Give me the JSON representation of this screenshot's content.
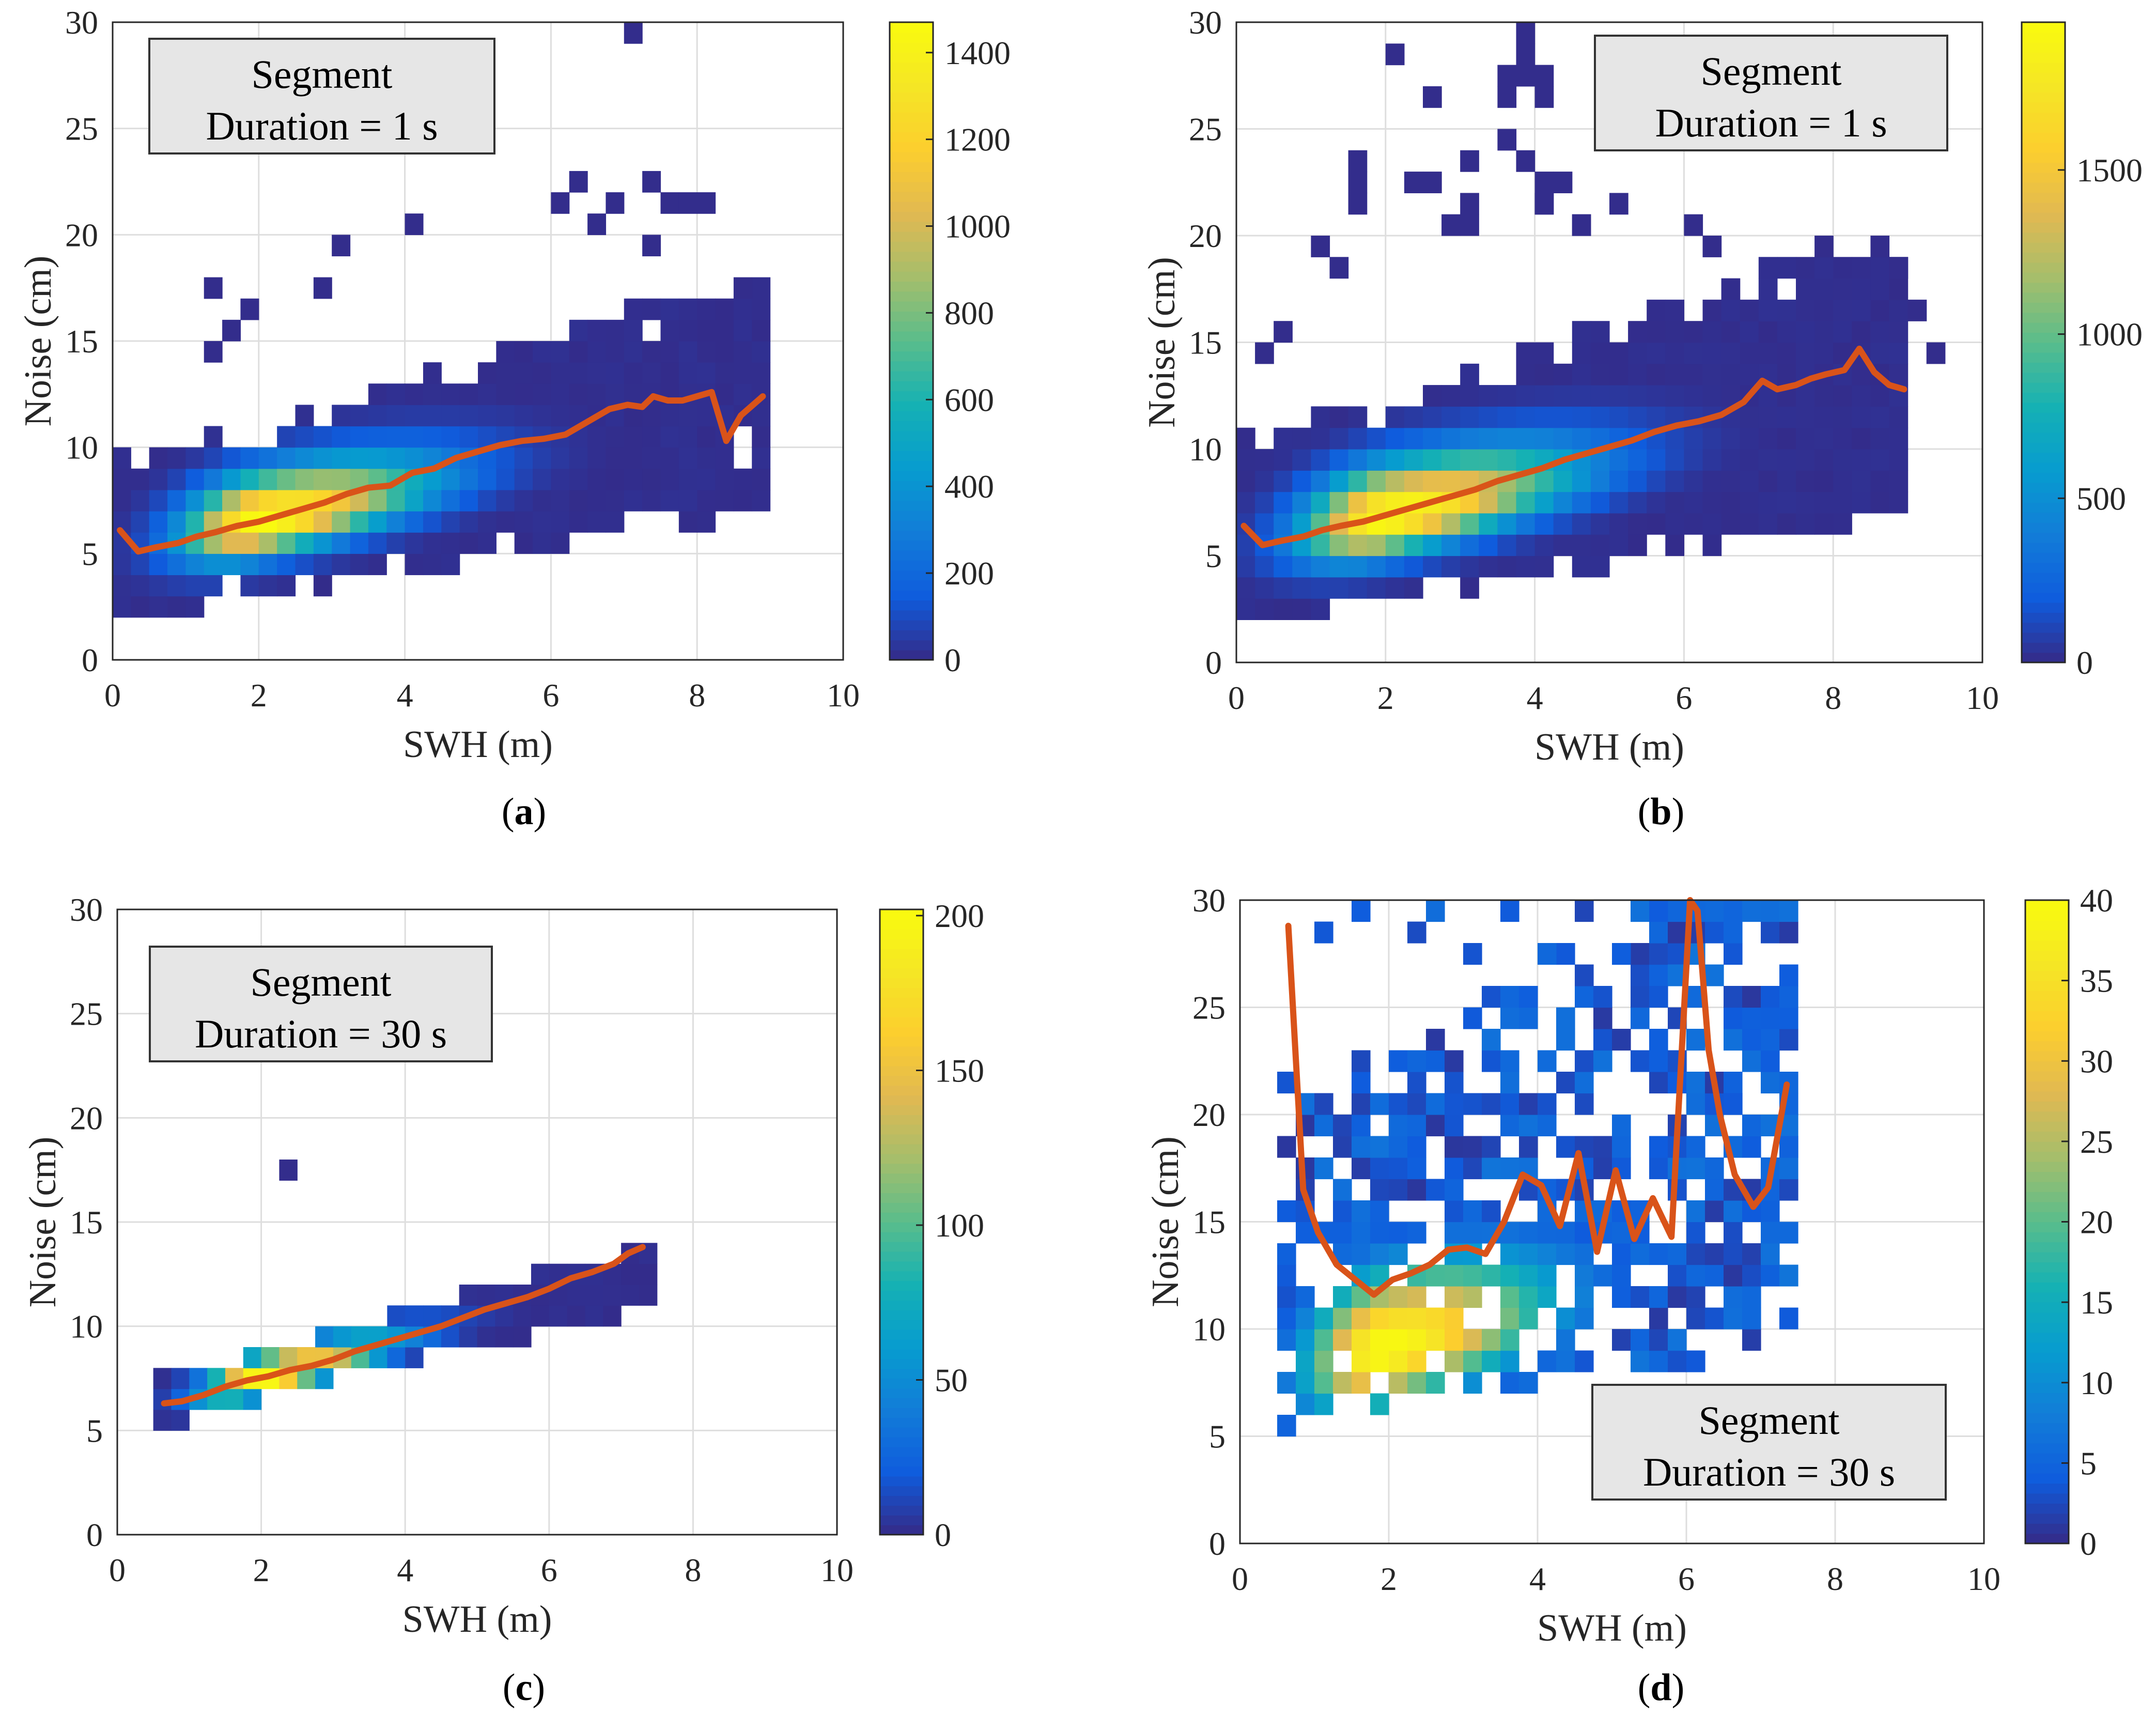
{
  "chart_data": [
    {
      "type": "heatmap",
      "panel_label": "a",
      "title": "",
      "annotation": {
        "line1": "Segment",
        "line2": "Duration = 1 s",
        "placement": "top-left"
      },
      "xlabel": "SWH (m)",
      "ylabel": "Noise (cm)",
      "xlim": [
        0,
        10
      ],
      "ylim": [
        0,
        30
      ],
      "xticks": [
        0,
        2,
        4,
        6,
        8,
        10
      ],
      "yticks": [
        0,
        5,
        10,
        15,
        20,
        25,
        30
      ],
      "grid": true,
      "bin_size": {
        "x": 0.25,
        "y": 1
      },
      "colorbar": {
        "min": 0,
        "max": 1470,
        "ticks": [
          0,
          200,
          400,
          600,
          800,
          1000,
          1200,
          1400
        ],
        "colormap": "parula"
      },
      "density": {
        "center": [
          2.0,
          6.5
        ],
        "peak": 1470,
        "sigma_along": 0.7,
        "sigma_across": 1.1,
        "extent_x": [
          0,
          9
        ],
        "slope_y": 0.75,
        "spread_low": [
          3.5,
          0.6
        ],
        "spread_high": [
          4.5,
          0.9
        ],
        "outliers": [
          [
            7.0,
            29.5
          ],
          [
            6.4,
            22.5
          ],
          [
            6.8,
            21.5
          ],
          [
            7.25,
            22.5
          ],
          [
            7.6,
            21.5
          ],
          [
            7.9,
            21.5
          ],
          [
            8.1,
            21.5
          ],
          [
            3.05,
            19.5
          ],
          [
            4.1,
            20.5
          ],
          [
            1.4,
            17.5
          ],
          [
            2.85,
            17.5
          ],
          [
            1.8,
            16.5
          ],
          [
            8.6,
            17.5
          ],
          [
            7.3,
            15.5
          ],
          [
            1.25,
            14.5
          ],
          [
            1.55,
            15.5
          ],
          [
            6.65,
            20.5
          ],
          [
            7.4,
            19.5
          ],
          [
            6.0,
            21.5
          ]
        ],
        "holes": [
          [
            7.3,
            15.5
          ],
          [
            8.6,
            9.5
          ],
          [
            8.6,
            10.5
          ],
          [
            1.5,
            3.5
          ]
        ]
      },
      "line": {
        "name": "Mean noise",
        "color": "#d95319",
        "x": [
          0.1,
          0.35,
          0.6,
          0.9,
          1.15,
          1.4,
          1.7,
          2.0,
          2.3,
          2.6,
          2.9,
          3.2,
          3.5,
          3.8,
          4.1,
          4.4,
          4.7,
          5.0,
          5.3,
          5.6,
          5.9,
          6.2,
          6.5,
          6.8,
          7.05,
          7.25,
          7.4,
          7.6,
          7.8,
          8.0,
          8.2,
          8.4,
          8.6,
          8.9
        ],
        "y": [
          6.1,
          5.1,
          5.3,
          5.5,
          5.8,
          6.0,
          6.3,
          6.5,
          6.8,
          7.1,
          7.4,
          7.8,
          8.1,
          8.2,
          8.8,
          9.0,
          9.5,
          9.8,
          10.1,
          10.3,
          10.4,
          10.6,
          11.2,
          11.8,
          12.0,
          11.9,
          12.4,
          12.2,
          12.2,
          12.4,
          12.6,
          10.3,
          11.5,
          12.4
        ]
      },
      "caption": "(a)"
    },
    {
      "type": "heatmap",
      "panel_label": "b",
      "title": "",
      "annotation": {
        "line1": "Segment",
        "line2": "Duration = 1 s",
        "placement": "top-right"
      },
      "xlabel": "SWH (m)",
      "ylabel": "Noise (cm)",
      "xlim": [
        0,
        10
      ],
      "ylim": [
        0,
        30
      ],
      "xticks": [
        0,
        2,
        4,
        6,
        8,
        10
      ],
      "yticks": [
        0,
        5,
        10,
        15,
        20,
        25,
        30
      ],
      "grid": true,
      "bin_size": {
        "x": 0.25,
        "y": 1
      },
      "colorbar": {
        "min": 0,
        "max": 1950,
        "ticks": [
          0,
          500,
          1000,
          1500
        ],
        "colormap": "parula"
      },
      "density": {
        "center": [
          2.0,
          6.8
        ],
        "peak": 1950,
        "sigma_along": 0.75,
        "sigma_across": 1.2,
        "extent_x": [
          0,
          9
        ],
        "slope_y": 0.78,
        "spread_low": [
          4.0,
          0.7
        ],
        "spread_high": [
          5.5,
          1.1
        ],
        "outliers": [
          [
            3.9,
            29.5
          ],
          [
            3.8,
            28.5
          ],
          [
            3.5,
            27.5
          ],
          [
            3.75,
            27.5
          ],
          [
            4.0,
            27.5
          ],
          [
            2.0,
            28.5
          ],
          [
            2.7,
            26.5
          ],
          [
            3.6,
            26.5
          ],
          [
            4.1,
            26.5
          ],
          [
            3.7,
            24.5
          ],
          [
            3.2,
            23.5
          ],
          [
            3.85,
            23.5
          ],
          [
            4.1,
            22.5
          ],
          [
            1.7,
            23.5
          ],
          [
            1.55,
            22.5
          ],
          [
            1.5,
            21.5
          ],
          [
            2.3,
            22.5
          ],
          [
            2.55,
            22.5
          ],
          [
            3.05,
            21.5
          ],
          [
            4.35,
            22.5
          ],
          [
            2.75,
            20.5
          ],
          [
            3.0,
            20.5
          ],
          [
            4.0,
            21.5
          ],
          [
            4.2,
            21.5
          ],
          [
            5.0,
            21.5
          ],
          [
            4.5,
            20.5
          ],
          [
            4.7,
            20.5
          ],
          [
            6.0,
            20.5
          ],
          [
            6.4,
            19.5
          ],
          [
            1.0,
            19.5
          ],
          [
            1.3,
            18.5
          ],
          [
            7.8,
            19.5
          ],
          [
            8.5,
            19.5
          ],
          [
            8.9,
            18.5
          ],
          [
            0.7,
            15.5
          ],
          [
            0.45,
            14.5
          ],
          [
            9.1,
            16.5
          ],
          [
            9.3,
            14.5
          ]
        ],
        "holes": [
          [
            7.3,
            17.5
          ],
          [
            6.0,
            18.5
          ],
          [
            2.0,
            16.5
          ],
          [
            2.5,
            15.5
          ],
          [
            4.8,
            17.5
          ]
        ]
      },
      "line": {
        "name": "Mean noise",
        "color": "#d95319",
        "x": [
          0.1,
          0.35,
          0.6,
          0.9,
          1.15,
          1.4,
          1.7,
          2.0,
          2.3,
          2.6,
          2.9,
          3.2,
          3.5,
          3.8,
          4.1,
          4.4,
          4.7,
          5.0,
          5.3,
          5.6,
          5.9,
          6.2,
          6.5,
          6.8,
          7.05,
          7.25,
          7.5,
          7.7,
          7.9,
          8.15,
          8.35,
          8.55,
          8.75,
          8.95
        ],
        "y": [
          6.4,
          5.5,
          5.7,
          5.9,
          6.2,
          6.4,
          6.6,
          6.9,
          7.2,
          7.5,
          7.8,
          8.1,
          8.5,
          8.8,
          9.1,
          9.5,
          9.8,
          10.1,
          10.4,
          10.8,
          11.1,
          11.3,
          11.6,
          12.2,
          13.2,
          12.8,
          13.0,
          13.3,
          13.5,
          13.7,
          14.7,
          13.6,
          13.0,
          12.8
        ]
      },
      "caption": "(b)"
    },
    {
      "type": "heatmap",
      "panel_label": "c",
      "title": "",
      "annotation": {
        "line1": "Segment",
        "line2": "Duration = 30 s",
        "placement": "top-left"
      },
      "xlabel": "SWH (m)",
      "ylabel": "Noise (cm)",
      "xlim": [
        0,
        10
      ],
      "ylim": [
        0,
        30
      ],
      "xticks": [
        0,
        2,
        4,
        6,
        8,
        10
      ],
      "yticks": [
        0,
        5,
        10,
        15,
        20,
        25,
        30
      ],
      "grid": true,
      "bin_size": {
        "x": 0.25,
        "y": 1
      },
      "colorbar": {
        "min": 0,
        "max": 202,
        "ticks": [
          0,
          50,
          100,
          150,
          200
        ],
        "colormap": "parula"
      },
      "density": {
        "center": [
          2.0,
          7.5
        ],
        "peak": 202,
        "sigma_along": 0.55,
        "sigma_across": 0.55,
        "extent_x": [
          0.5,
          7.5
        ],
        "slope_y": 0.9,
        "spread_low": [
          1.0,
          0.3
        ],
        "spread_high": [
          1.3,
          0.3
        ],
        "outliers": [
          [
            2.35,
            17.5
          ]
        ],
        "holes": []
      },
      "line": {
        "name": "Mean noise",
        "color": "#d95319",
        "x": [
          0.65,
          0.9,
          1.2,
          1.5,
          1.8,
          2.1,
          2.4,
          2.7,
          3.0,
          3.3,
          3.6,
          3.9,
          4.2,
          4.5,
          4.8,
          5.1,
          5.4,
          5.7,
          6.0,
          6.3,
          6.6,
          6.9,
          7.1,
          7.3
        ],
        "y": [
          6.3,
          6.4,
          6.7,
          7.1,
          7.4,
          7.6,
          7.9,
          8.1,
          8.4,
          8.8,
          9.1,
          9.4,
          9.7,
          10.0,
          10.4,
          10.8,
          11.1,
          11.4,
          11.8,
          12.3,
          12.6,
          13.0,
          13.5,
          13.8
        ]
      },
      "caption": "(c)"
    },
    {
      "type": "heatmap",
      "panel_label": "d",
      "title": "",
      "annotation": {
        "line1": "Segment",
        "line2": "Duration = 30 s",
        "placement": "bottom-right"
      },
      "xlabel": "SWH (m)",
      "ylabel": "Noise (cm)",
      "xlim": [
        0,
        10
      ],
      "ylim": [
        0,
        30
      ],
      "xticks": [
        0,
        2,
        4,
        6,
        8,
        10
      ],
      "yticks": [
        0,
        5,
        10,
        15,
        20,
        25,
        30
      ],
      "grid": true,
      "bin_size": {
        "x": 0.25,
        "y": 1
      },
      "colorbar": {
        "min": 0,
        "max": 40,
        "ticks": [
          0,
          5,
          10,
          15,
          20,
          25,
          30,
          35,
          40
        ],
        "colormap": "parula"
      },
      "density": {
        "center": [
          1.9,
          9.0
        ],
        "peak": 40,
        "sigma_along": 0.7,
        "sigma_across": 1.8,
        "extent_x": [
          0.5,
          7.5
        ],
        "slope_y": 0.9,
        "spread_low": [
          2.5,
          1.5
        ],
        "spread_high": [
          14.0,
          2.5
        ],
        "sparse": true,
        "outliers": [
          [
            1.6,
            29.5
          ],
          [
            2.6,
            29.5
          ],
          [
            3.5,
            29.5
          ],
          [
            4.5,
            29.5
          ],
          [
            5.5,
            29.5
          ],
          [
            6.1,
            29.5
          ],
          [
            1.1,
            28.5
          ],
          [
            2.25,
            28.5
          ],
          [
            3.0,
            27.5
          ],
          [
            4.1,
            27.5
          ],
          [
            5.1,
            27.5
          ],
          [
            6.6,
            21.5
          ],
          [
            7.3,
            18.5
          ],
          [
            7.05,
            14.5
          ],
          [
            5.9,
            26.5
          ],
          [
            5.7,
            25.5
          ],
          [
            6.5,
            20.5
          ]
        ],
        "holes": []
      },
      "line": {
        "name": "Mean noise",
        "color": "#d95319",
        "x": [
          0.65,
          0.85,
          1.05,
          1.3,
          1.55,
          1.8,
          2.05,
          2.3,
          2.55,
          2.8,
          3.05,
          3.3,
          3.55,
          3.8,
          4.05,
          4.3,
          4.55,
          4.8,
          5.05,
          5.3,
          5.55,
          5.8,
          6.05,
          6.15,
          6.3,
          6.45,
          6.65,
          6.9,
          7.1,
          7.35
        ],
        "y": [
          28.8,
          16.5,
          14.5,
          13.0,
          12.3,
          11.6,
          12.3,
          12.6,
          13.0,
          13.7,
          13.8,
          13.5,
          15.0,
          17.2,
          16.7,
          14.8,
          18.2,
          13.6,
          17.4,
          14.2,
          16.1,
          14.3,
          30.0,
          29.5,
          23.0,
          20.0,
          17.2,
          15.7,
          16.6,
          21.4
        ]
      },
      "caption": "(d)"
    }
  ]
}
